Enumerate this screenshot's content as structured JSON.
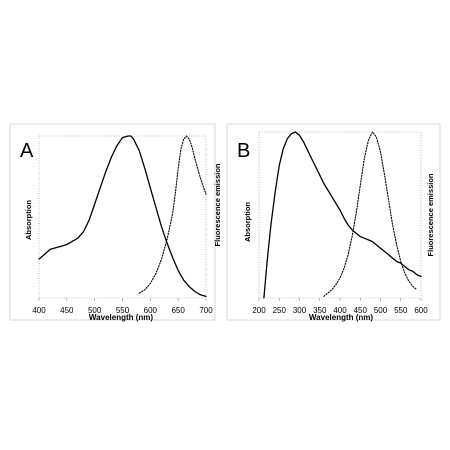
{
  "chart_data": [
    {
      "type": "line",
      "panel_label": "A",
      "xlabel": "Wavelength (nm)",
      "ylabel_left": "Absorption",
      "ylabel_right": "Fluorescence emission",
      "xlim": [
        400,
        700
      ],
      "ylim": [
        0,
        1
      ],
      "xticks": [
        400,
        450,
        500,
        550,
        600,
        650,
        700
      ],
      "yticks_shown": false,
      "grid": false,
      "series": [
        {
          "style": "solid",
          "x": [
            400,
            410,
            420,
            430,
            440,
            450,
            460,
            470,
            480,
            490,
            500,
            510,
            520,
            530,
            540,
            550,
            560,
            565,
            570,
            580,
            590,
            600,
            610,
            620,
            630,
            640,
            650,
            660,
            670,
            680,
            690,
            700
          ],
          "y": [
            0.24,
            0.27,
            0.3,
            0.31,
            0.32,
            0.33,
            0.35,
            0.37,
            0.41,
            0.48,
            0.58,
            0.68,
            0.78,
            0.87,
            0.94,
            0.99,
            1.0,
            1.0,
            0.98,
            0.91,
            0.8,
            0.68,
            0.56,
            0.44,
            0.34,
            0.25,
            0.17,
            0.11,
            0.07,
            0.04,
            0.02,
            0.01
          ]
        },
        {
          "style": "dotted",
          "x": [
            580,
            590,
            600,
            610,
            620,
            630,
            640,
            645,
            650,
            655,
            660,
            665,
            670,
            675,
            680,
            690,
            700
          ],
          "y": [
            0.03,
            0.05,
            0.09,
            0.15,
            0.24,
            0.36,
            0.52,
            0.65,
            0.8,
            0.92,
            0.98,
            1.0,
            0.98,
            0.93,
            0.86,
            0.74,
            0.64
          ]
        }
      ]
    },
    {
      "type": "line",
      "panel_label": "B",
      "xlabel": "Wavelength (nm)",
      "ylabel_left": "Absorption",
      "ylabel_right": "Fluorescence emission",
      "xlim": [
        200,
        600
      ],
      "ylim": [
        0,
        1
      ],
      "xticks": [
        200,
        250,
        300,
        350,
        400,
        450,
        500,
        550,
        600
      ],
      "yticks_shown": false,
      "grid": false,
      "series": [
        {
          "style": "solid",
          "x": [
            212,
            220,
            230,
            240,
            250,
            260,
            270,
            280,
            290,
            300,
            310,
            320,
            330,
            340,
            350,
            360,
            370,
            380,
            390,
            400,
            410,
            420,
            430,
            440,
            450,
            460,
            470,
            480,
            490,
            500,
            510,
            520,
            530,
            540,
            550,
            560,
            570,
            580,
            590,
            600
          ],
          "y": [
            0.0,
            0.22,
            0.45,
            0.64,
            0.8,
            0.9,
            0.96,
            0.99,
            1.0,
            0.98,
            0.94,
            0.89,
            0.84,
            0.79,
            0.74,
            0.69,
            0.65,
            0.61,
            0.57,
            0.53,
            0.48,
            0.44,
            0.41,
            0.39,
            0.37,
            0.36,
            0.35,
            0.34,
            0.32,
            0.3,
            0.28,
            0.26,
            0.24,
            0.22,
            0.21,
            0.19,
            0.17,
            0.16,
            0.14,
            0.13
          ]
        },
        {
          "style": "dotted",
          "x": [
            360,
            370,
            380,
            390,
            400,
            410,
            420,
            430,
            440,
            450,
            460,
            470,
            480,
            490,
            500,
            510,
            520,
            530,
            540,
            550,
            560,
            570,
            580,
            590
          ],
          "y": [
            0.01,
            0.03,
            0.05,
            0.08,
            0.12,
            0.18,
            0.26,
            0.37,
            0.51,
            0.68,
            0.84,
            0.95,
            1.0,
            0.97,
            0.88,
            0.74,
            0.59,
            0.44,
            0.32,
            0.22,
            0.15,
            0.1,
            0.07,
            0.05
          ]
        }
      ]
    }
  ]
}
